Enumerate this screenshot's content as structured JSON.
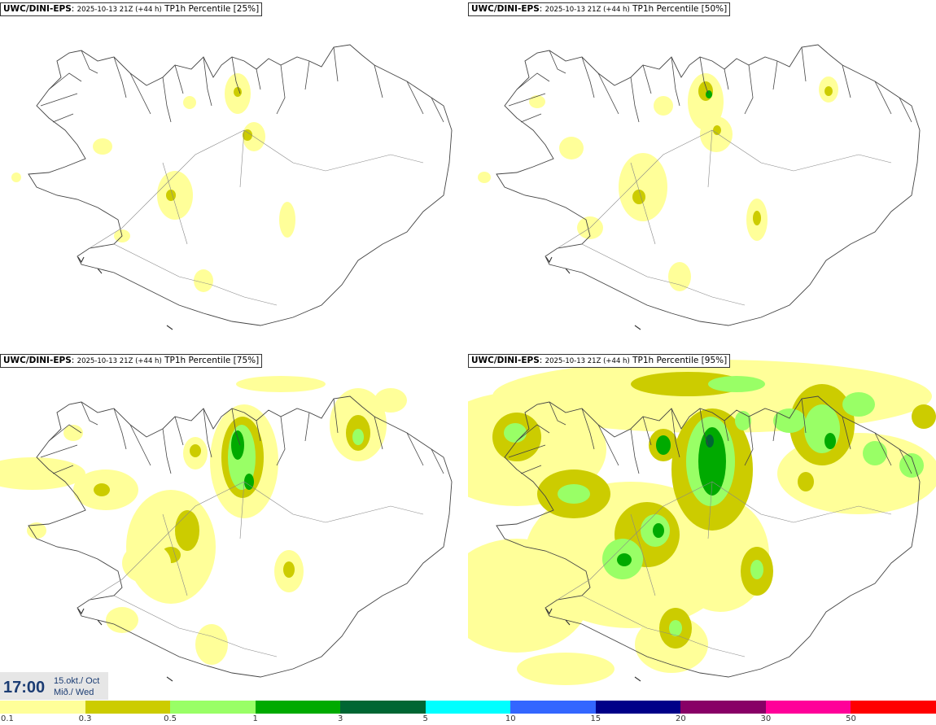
{
  "panels": [
    {
      "model": "UWC/DINI-EPS",
      "run": "2025-10-13 21Z (+44 h)",
      "field": "TP1h Percentile [25%]"
    },
    {
      "model": "UWC/DINI-EPS",
      "run": "2025-10-13 21Z (+44 h)",
      "field": "TP1h Percentile [50%]"
    },
    {
      "model": "UWC/DINI-EPS",
      "run": "2025-10-13 21Z (+44 h)",
      "field": "TP1h Percentile [75%]"
    },
    {
      "model": "UWC/DINI-EPS",
      "run": "2025-10-13 21Z (+44 h)",
      "field": "TP1h Percentile [95%]"
    }
  ],
  "time": {
    "clock": "17:00",
    "date_line1": "15.okt./ Oct",
    "date_line2": "Mið./ Wed"
  },
  "legend": {
    "colors": [
      "#ffff99",
      "#cccc00",
      "#99ff66",
      "#00aa00",
      "#006633",
      "#00ffff",
      "#3366ff",
      "#000088",
      "#880066",
      "#ff0099",
      "#ff0000"
    ],
    "labels": [
      "0.1",
      "0.3",
      "0.5",
      "1",
      "3",
      "5",
      "10",
      "15",
      "20",
      "30",
      "50"
    ]
  }
}
